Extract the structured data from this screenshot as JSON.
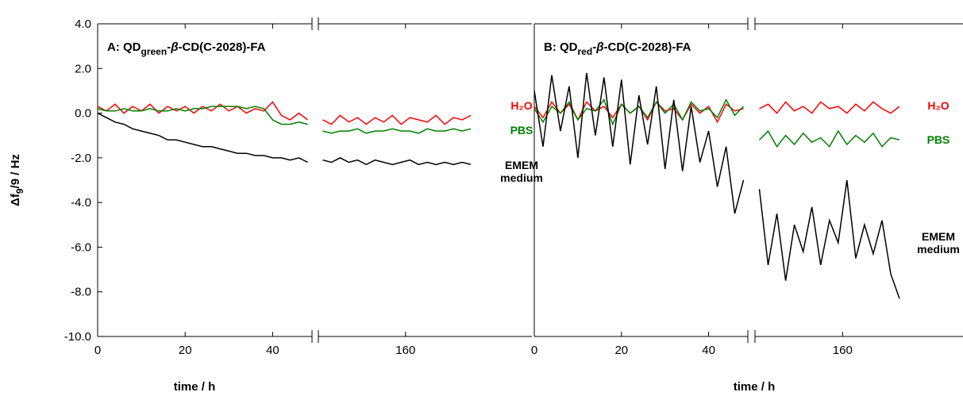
{
  "chart_data": [
    {
      "type": "line",
      "title": {
        "prefix": "A: QD",
        "sub": "green",
        "dash": "-",
        "beta": "β",
        "suffix": "-CD(C-2028)-FA"
      },
      "y_label": {
        "main": "Δf",
        "sub": "9",
        "rest": "/9 / Hz"
      },
      "x_label": "time / h",
      "ylim": [
        -10,
        4
      ],
      "yticks": [
        {
          "value": 4,
          "label": "4.0"
        },
        {
          "value": 2,
          "label": "2.0"
        },
        {
          "value": 0,
          "label": "0.0"
        },
        {
          "value": -2,
          "label": "-2.0"
        },
        {
          "value": -4,
          "label": "-4.0"
        },
        {
          "value": -6,
          "label": "-6.0"
        },
        {
          "value": -8,
          "label": "-8.0"
        },
        {
          "value": -10,
          "label": "-10.0"
        }
      ],
      "segments": [
        {
          "xlim": [
            0,
            49
          ],
          "xticks": [
            0,
            20,
            40
          ],
          "x": [
            0,
            2,
            4,
            6,
            8,
            10,
            12,
            14,
            16,
            18,
            20,
            22,
            24,
            26,
            28,
            30,
            32,
            34,
            36,
            38,
            40,
            42,
            44,
            46,
            48
          ]
        },
        {
          "xlim": [
            140,
            189
          ],
          "xticks": [
            160
          ],
          "x": [
            141,
            143,
            145,
            147,
            149,
            151,
            153,
            155,
            157,
            159,
            161,
            163,
            165,
            167,
            169,
            171,
            173,
            175
          ]
        }
      ],
      "series": [
        {
          "name": "H₂O",
          "color": "#ff0000",
          "values": [
            [
              0.3,
              0.1,
              0.4,
              0.0,
              0.3,
              0.1,
              0.4,
              0.0,
              0.3,
              0.1,
              0.3,
              0.0,
              0.3,
              0.1,
              0.4,
              0.1,
              0.3,
              0.0,
              0.2,
              0.1,
              0.5,
              -0.1,
              -0.3,
              0.0,
              -0.3
            ],
            [
              -0.3,
              -0.5,
              -0.1,
              -0.4,
              -0.2,
              -0.5,
              -0.2,
              -0.4,
              -0.1,
              -0.5,
              -0.2,
              -0.3,
              -0.4,
              -0.1,
              -0.5,
              -0.2,
              -0.3,
              -0.1
            ]
          ]
        },
        {
          "name": "PBS",
          "color": "#008000",
          "values": [
            [
              0.2,
              0.1,
              0.1,
              0.2,
              0.1,
              0.1,
              0.2,
              0.1,
              0.1,
              0.2,
              0.1,
              0.2,
              0.2,
              0.3,
              0.3,
              0.3,
              0.3,
              0.2,
              0.3,
              0.2,
              -0.3,
              -0.5,
              -0.5,
              -0.4,
              -0.5
            ],
            [
              -0.8,
              -0.9,
              -0.8,
              -0.8,
              -0.7,
              -0.9,
              -0.8,
              -0.8,
              -0.7,
              -0.8,
              -0.8,
              -0.9,
              -0.7,
              -0.8,
              -0.8,
              -0.7,
              -0.8,
              -0.7
            ]
          ]
        },
        {
          "name": "EMEM medium",
          "color": "#000000",
          "values": [
            [
              0.0,
              -0.2,
              -0.4,
              -0.5,
              -0.7,
              -0.8,
              -0.9,
              -1.0,
              -1.2,
              -1.2,
              -1.3,
              -1.4,
              -1.5,
              -1.5,
              -1.6,
              -1.7,
              -1.8,
              -1.8,
              -1.9,
              -1.9,
              -2.0,
              -2.0,
              -2.1,
              -2.0,
              -2.2
            ],
            [
              -2.1,
              -2.2,
              -2.0,
              -2.2,
              -2.1,
              -2.3,
              -2.1,
              -2.2,
              -2.3,
              -2.2,
              -2.1,
              -2.3,
              -2.2,
              -2.3,
              -2.2,
              -2.3,
              -2.2,
              -2.3
            ]
          ]
        }
      ]
    },
    {
      "type": "line",
      "title": {
        "prefix": "B: QD",
        "sub": "red",
        "dash": "-",
        "beta": "β",
        "suffix": "-CD(C-2028)-FA"
      },
      "x_label": "time / h",
      "ylim": [
        -10,
        4
      ],
      "segments": [
        {
          "xlim": [
            0,
            49
          ],
          "xticks": [
            0,
            20,
            40
          ],
          "x": [
            0,
            2,
            4,
            6,
            8,
            10,
            12,
            14,
            16,
            18,
            20,
            22,
            24,
            26,
            28,
            30,
            32,
            34,
            36,
            38,
            40,
            42,
            44,
            46,
            48
          ]
        },
        {
          "xlim": [
            140,
            187.5
          ],
          "xticks": [
            160
          ],
          "x": [
            141,
            143,
            145,
            147,
            149,
            151,
            153,
            155,
            157,
            159,
            161,
            163,
            165,
            167,
            169,
            171,
            173
          ]
        }
      ],
      "series": [
        {
          "name": "H₂O",
          "color": "#ff0000",
          "values": [
            [
              0.3,
              -0.2,
              0.5,
              0.0,
              0.4,
              -0.3,
              0.5,
              0.1,
              0.3,
              -0.2,
              0.4,
              0.0,
              0.3,
              -0.3,
              0.5,
              0.1,
              0.2,
              -0.3,
              0.4,
              0.0,
              0.3,
              -0.4,
              0.4,
              0.1,
              0.2
            ],
            [
              0.2,
              0.4,
              0.0,
              0.5,
              0.1,
              0.3,
              0.0,
              0.5,
              0.2,
              0.3,
              0.0,
              0.4,
              0.1,
              0.5,
              0.2,
              0.0,
              0.3
            ]
          ]
        },
        {
          "name": "PBS",
          "color": "#008000",
          "values": [
            [
              0.2,
              -0.4,
              0.3,
              0.0,
              0.5,
              -0.3,
              0.2,
              0.1,
              0.6,
              -0.5,
              0.4,
              0.0,
              0.3,
              -0.2,
              0.5,
              0.0,
              0.4,
              -0.3,
              0.5,
              0.1,
              0.2,
              -0.2,
              0.6,
              -0.1,
              0.3
            ],
            [
              -1.2,
              -0.8,
              -1.5,
              -1.0,
              -1.4,
              -0.9,
              -1.3,
              -1.1,
              -1.5,
              -0.8,
              -1.4,
              -1.0,
              -1.3,
              -0.9,
              -1.5,
              -1.1,
              -1.2
            ]
          ]
        },
        {
          "name": "EMEM medium",
          "color": "#000000",
          "values": [
            [
              1.0,
              -1.5,
              1.7,
              -0.8,
              1.2,
              -2.0,
              1.8,
              -1.0,
              1.6,
              -1.5,
              1.5,
              -2.3,
              0.8,
              -1.4,
              1.2,
              -2.5,
              0.6,
              -2.6,
              0.3,
              -2.2,
              -0.8,
              -3.3,
              -1.5,
              -4.5,
              -3.0
            ],
            [
              -3.4,
              -6.8,
              -4.5,
              -7.5,
              -5.0,
              -6.2,
              -4.2,
              -6.8,
              -4.8,
              -5.8,
              -3.0,
              -6.5,
              -5.0,
              -6.3,
              -4.8,
              -7.2,
              -8.3
            ]
          ]
        }
      ]
    }
  ]
}
